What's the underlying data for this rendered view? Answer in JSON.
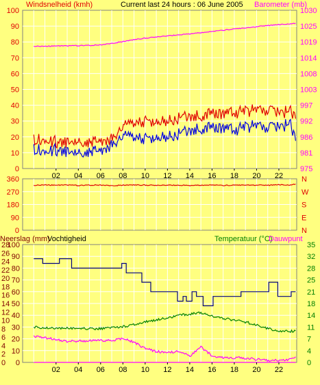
{
  "header": {
    "left": "Windsnelheid (kmh)",
    "center": "Current last 24 hours : 06 June 2005",
    "right": "Barometer (mb)"
  },
  "colors": {
    "background": "#ffff80",
    "panel_border": "#808080",
    "grid": "#ffffff",
    "gust": "#e00000",
    "wind": "#0000e0",
    "barometer": "#ff00ff",
    "direction": "#e00000",
    "humidity": "#000080",
    "temperature": "#008000",
    "dewpoint": "#ff00ff",
    "rain": "#ff00ff",
    "left_label": "#e00000",
    "right_label": "#ff00ff",
    "direction_label": "#e00000",
    "bottom_left_label": "#800000",
    "bottom_right_label": "#008000"
  },
  "x_ticks": [
    "02",
    "04",
    "06",
    "08",
    "10",
    "12",
    "14",
    "16",
    "18",
    "20",
    "22"
  ],
  "chart_data": [
    {
      "type": "line",
      "title": "Current last 24 hours : 06 June 2005",
      "x": [
        0,
        1,
        2,
        3,
        4,
        5,
        6,
        7,
        8,
        9,
        10,
        11,
        12,
        13,
        14,
        15,
        16,
        17,
        18,
        19,
        20,
        21,
        22,
        23,
        23.5
      ],
      "ylabel_left": "Windsnelheid (kmh)",
      "ylabel_right": "Barometer (mb)",
      "left_ticks": [
        "0",
        "10",
        "20",
        "30",
        "40",
        "50",
        "60",
        "70",
        "80",
        "90",
        "100"
      ],
      "right_ticks": [
        "975",
        "981",
        "986",
        "992",
        "997",
        "1003",
        "1008",
        "1014",
        "1019",
        "1025",
        "1030"
      ],
      "ylim_left": [
        0,
        100
      ],
      "ylim_right": [
        975,
        1030
      ],
      "series": [
        {
          "name": "",
          "axis": "left",
          "color": "gust",
          "values": [
            18,
            18,
            17,
            17,
            18,
            17,
            18,
            19,
            26,
            30,
            30,
            30,
            31,
            32,
            33,
            34,
            34,
            34,
            35,
            36,
            37,
            37,
            35,
            36,
            34
          ]
        },
        {
          "name": "",
          "axis": "left",
          "color": "wind",
          "values": [
            12,
            11,
            12,
            11,
            11,
            11,
            12,
            15,
            20,
            21,
            19,
            20,
            21,
            22,
            24,
            26,
            25,
            25,
            24,
            26,
            27,
            26,
            26,
            28,
            20
          ]
        },
        {
          "name": "",
          "axis": "right",
          "color": "barometer",
          "values": [
            1017.5,
            1017.5,
            1017.6,
            1017.6,
            1017.7,
            1017.8,
            1018.0,
            1018.5,
            1019.1,
            1019.8,
            1020.3,
            1020.7,
            1021.1,
            1021.5,
            1021.8,
            1022.2,
            1022.6,
            1023.1,
            1023.5,
            1023.9,
            1024.3,
            1024.7,
            1025.0,
            1025.3,
            1025.4
          ]
        }
      ]
    },
    {
      "type": "line",
      "ylim": [
        0,
        360
      ],
      "left_ticks": [
        "0",
        "90",
        "180",
        "270",
        "360"
      ],
      "right_labels": [
        "N",
        "W",
        "S",
        "E",
        "N"
      ],
      "series": [
        {
          "name": "",
          "color": "direction",
          "x": [
            0,
            1,
            2,
            3,
            4,
            5,
            6,
            7,
            8,
            9,
            10,
            11,
            12,
            13,
            14,
            15,
            16,
            17,
            18,
            19,
            20,
            21,
            22,
            23,
            23.5
          ],
          "values": [
            314,
            318,
            315,
            316,
            313,
            316,
            317,
            312,
            315,
            317,
            316,
            314,
            315,
            316,
            313,
            315,
            316,
            314,
            315,
            317,
            316,
            315,
            318,
            317,
            321
          ]
        }
      ]
    },
    {
      "type": "line",
      "ylabel_left": "Neerslag (mm)",
      "ylabel_left2": "Vochtigheid",
      "ylabel_right": "Temperatuur (°C)",
      "ylabel_right2": "Dauwpunt",
      "left_ticks_rain": [
        "0",
        "2",
        "4",
        "6",
        "8",
        "10",
        "12",
        "14",
        "16",
        "18",
        "20",
        "22",
        "24",
        "26",
        "28"
      ],
      "left_ticks_humidity": [
        "0",
        "10",
        "20",
        "30",
        "40",
        "50",
        "60",
        "70",
        "80",
        "90",
        "100"
      ],
      "right_ticks": [
        "0",
        "4",
        "7",
        "11",
        "14",
        "18",
        "21",
        "25",
        "28",
        "32",
        "35"
      ],
      "ylim_humidity": [
        0,
        100
      ],
      "ylim_temperature": [
        0,
        35
      ],
      "series": [
        {
          "name": "",
          "axis": "left",
          "color": "humidity",
          "step": true,
          "x": [
            0,
            0.8,
            0.8,
            2.3,
            2.3,
            3.4,
            3.4,
            5.8,
            5.8,
            7.9,
            7.9,
            8.3,
            8.3,
            9.7,
            9.7,
            10.5,
            10.5,
            12.9,
            12.9,
            13.4,
            13.4,
            13.7,
            13.7,
            14.2,
            14.2,
            14.6,
            14.6,
            15.2,
            15.2,
            16.1,
            16.1,
            18.6,
            18.6,
            21.1,
            21.1,
            21.9,
            21.9,
            23.1,
            23.1,
            23.5
          ],
          "values": [
            88,
            88,
            84,
            84,
            88,
            88,
            80,
            80,
            80,
            80,
            84,
            84,
            76,
            76,
            68,
            68,
            60,
            60,
            52,
            52,
            56,
            56,
            52,
            52,
            60,
            60,
            56,
            56,
            48,
            48,
            56,
            56,
            60,
            60,
            68,
            68,
            56,
            56,
            60,
            60
          ]
        },
        {
          "name": "",
          "axis": "right",
          "color": "temperature",
          "x": [
            0,
            1,
            2,
            3,
            4,
            5,
            6,
            7,
            8,
            9,
            10,
            11,
            12,
            13,
            14,
            15,
            16,
            17,
            18,
            19,
            20,
            21,
            22,
            23,
            23.5
          ],
          "values": [
            10.5,
            10.3,
            10.2,
            10.1,
            10.1,
            10.0,
            10.0,
            10.2,
            10.6,
            11.2,
            12.0,
            12.7,
            13.1,
            14.0,
            14.3,
            14.8,
            13.8,
            13.1,
            12.5,
            12.0,
            11.2,
            10.0,
            9.4,
            9.2,
            9.4
          ]
        },
        {
          "name": "",
          "axis": "right",
          "color": "dewpoint",
          "x": [
            0,
            1,
            2,
            3,
            4,
            5,
            6,
            7,
            8,
            9,
            10,
            11,
            12,
            13,
            14,
            15,
            16,
            17,
            18,
            19,
            20,
            21,
            22,
            23,
            23.5
          ],
          "values": [
            7.8,
            7.4,
            6.7,
            6.3,
            6.3,
            6.5,
            6.5,
            6.5,
            7.1,
            6.0,
            4.2,
            3.2,
            3.0,
            3.2,
            1.9,
            4.6,
            2.0,
            1.4,
            1.4,
            1.3,
            0.9,
            0.5,
            0.6,
            0.9,
            1.4
          ]
        },
        {
          "name": "",
          "axis": "left",
          "color": "rain",
          "x": [
            0,
            23.5
          ],
          "values": [
            0,
            0
          ]
        }
      ]
    }
  ]
}
